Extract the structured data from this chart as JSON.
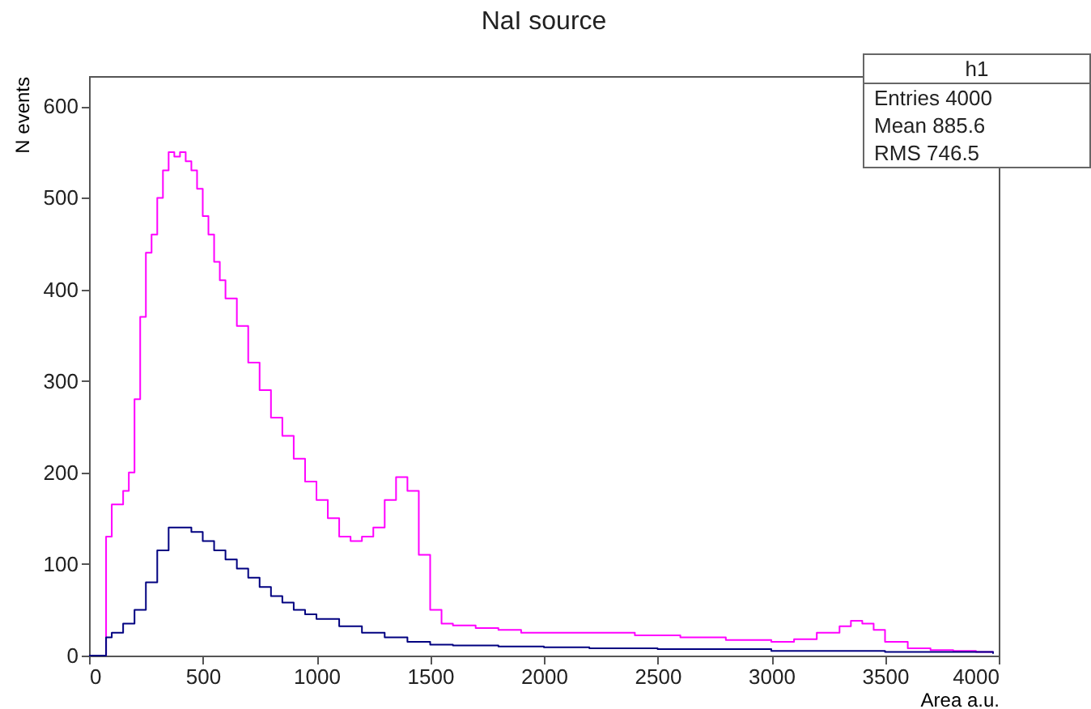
{
  "chart_data": {
    "type": "step",
    "title": "NaI source",
    "xlabel": "Area a.u.",
    "ylabel": "N events",
    "xlim": [
      0,
      4000
    ],
    "ylim": [
      0,
      633
    ],
    "xticks": [
      0,
      500,
      1000,
      1500,
      2000,
      2500,
      3000,
      3500,
      4000
    ],
    "yticks": [
      0,
      100,
      200,
      300,
      400,
      500,
      600
    ],
    "grid": false,
    "annotations": [
      "h1",
      "Entries 4000",
      "Mean 885.6",
      "RMS 746.5"
    ],
    "series": [
      {
        "color": "#ff00ff",
        "x": [
          0,
          75,
          100,
          150,
          175,
          200,
          225,
          250,
          275,
          300,
          325,
          350,
          375,
          400,
          425,
          450,
          475,
          500,
          525,
          550,
          575,
          600,
          650,
          700,
          750,
          800,
          850,
          900,
          950,
          1000,
          1050,
          1100,
          1150,
          1200,
          1250,
          1300,
          1350,
          1400,
          1450,
          1500,
          1550,
          1600,
          1700,
          1800,
          1900,
          2000,
          2200,
          2400,
          2600,
          2800,
          3000,
          3100,
          3200,
          3300,
          3350,
          3400,
          3450,
          3500,
          3600,
          3700,
          3800,
          3900,
          3975
        ],
        "values": [
          0,
          130,
          165,
          180,
          200,
          280,
          370,
          440,
          460,
          500,
          530,
          550,
          545,
          550,
          540,
          530,
          510,
          480,
          460,
          430,
          410,
          390,
          360,
          320,
          290,
          260,
          240,
          215,
          190,
          170,
          150,
          130,
          125,
          130,
          140,
          170,
          195,
          180,
          110,
          50,
          35,
          33,
          30,
          28,
          25,
          25,
          25,
          22,
          20,
          17,
          15,
          18,
          25,
          32,
          38,
          35,
          28,
          15,
          8,
          6,
          5,
          4,
          3
        ]
      },
      {
        "color": "#000080",
        "x": [
          0,
          75,
          100,
          150,
          200,
          250,
          300,
          350,
          400,
          450,
          500,
          550,
          600,
          650,
          700,
          750,
          800,
          850,
          900,
          950,
          1000,
          1100,
          1200,
          1300,
          1400,
          1500,
          1600,
          1800,
          2000,
          2200,
          2500,
          3000,
          3500,
          3975
        ],
        "values": [
          0,
          20,
          25,
          35,
          50,
          80,
          115,
          140,
          140,
          135,
          125,
          115,
          105,
          95,
          85,
          75,
          65,
          58,
          50,
          45,
          40,
          32,
          25,
          20,
          15,
          12,
          11,
          10,
          9,
          8,
          7,
          5,
          4,
          2
        ]
      }
    ]
  }
}
